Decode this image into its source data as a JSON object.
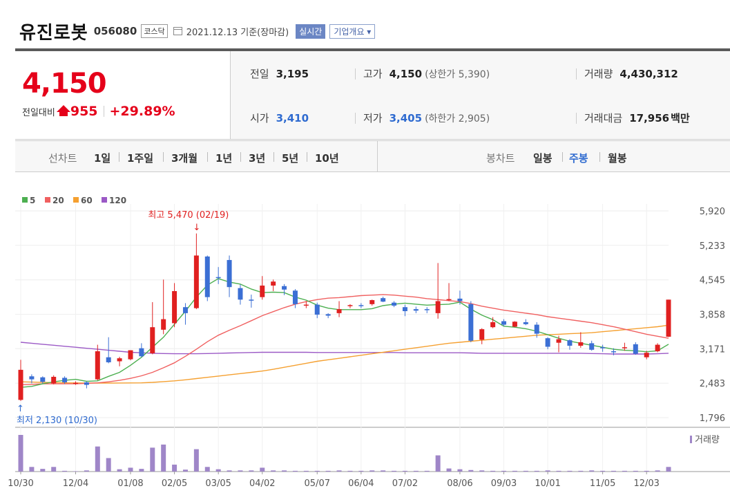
{
  "header": {
    "name": "유진로봇",
    "code": "056080",
    "market": "코스닥",
    "date": "2021.12.13 기준(장마감)",
    "realtime_button": "실시간",
    "corp_button": "기업개요 ▾"
  },
  "price": {
    "current": "4,150",
    "diff_label": "전일대비",
    "change": "955",
    "change_pct": "+29.89%"
  },
  "stats": {
    "prev_label": "전일",
    "prev": "3,195",
    "high_label": "고가",
    "high": "4,150",
    "high_note": "(상한가 5,390)",
    "volume_label": "거래량",
    "volume": "4,430,312",
    "open_label": "시가",
    "open": "3,410",
    "low_label": "저가",
    "low": "3,405",
    "low_note": "(하한가 2,905)",
    "amount_label": "거래대금",
    "amount": "17,956",
    "amount_unit": "백만"
  },
  "tabs": {
    "line_label": "선차트",
    "line": [
      "1일",
      "1주일",
      "3개월",
      "1년",
      "3년",
      "5년",
      "10년"
    ],
    "candle_label": "봉차트",
    "candle": [
      "일봉",
      "주봉",
      "월봉"
    ],
    "candle_selected": 1
  },
  "chart_data": {
    "type": "candlestick",
    "period": "weekly",
    "colors": {
      "up": "#e02020",
      "down": "#3b6fd4",
      "ma5": "#4caf50",
      "ma20": "#f06060",
      "ma60": "#f5a030",
      "ma120": "#9b59c6",
      "volume": "#9f86c8"
    },
    "legend": [
      {
        "name": "5",
        "color": "#4caf50"
      },
      {
        "name": "20",
        "color": "#f06060"
      },
      {
        "name": "60",
        "color": "#f5a030"
      },
      {
        "name": "120",
        "color": "#9b59c6"
      }
    ],
    "y_ticks": [
      "5,920",
      "5,233",
      "4,545",
      "3,858",
      "3,171",
      "2,483",
      "1,796"
    ],
    "y_tick_values": [
      5920,
      5233,
      4545,
      3858,
      3171,
      2483,
      1796
    ],
    "ylim": [
      1796,
      5920
    ],
    "x_labels": [
      "10/30",
      "12/04",
      "01/08",
      "02/05",
      "03/05",
      "04/02",
      "05/07",
      "06/04",
      "07/02",
      "08/06",
      "09/03",
      "10/01",
      "11/05",
      "12/03"
    ],
    "x_label_index": [
      0,
      5,
      10,
      14,
      18,
      22,
      27,
      31,
      35,
      40,
      44,
      48,
      53,
      57
    ],
    "high_annotation": {
      "text": "최고 5,470 (02/19)",
      "index": 16,
      "value": 5470
    },
    "low_annotation": {
      "text": "최저 2,130 (10/30)",
      "index": 0,
      "value": 2130
    },
    "volume_label": "거래량",
    "candles": [
      {
        "o": 2150,
        "h": 2950,
        "l": 2130,
        "c": 2750
      },
      {
        "o": 2620,
        "h": 2660,
        "l": 2480,
        "c": 2560
      },
      {
        "o": 2600,
        "h": 2620,
        "l": 2480,
        "c": 2510
      },
      {
        "o": 2480,
        "h": 2640,
        "l": 2460,
        "c": 2610
      },
      {
        "o": 2590,
        "h": 2620,
        "l": 2470,
        "c": 2500
      },
      {
        "o": 2480,
        "h": 2520,
        "l": 2450,
        "c": 2490
      },
      {
        "o": 2500,
        "h": 2520,
        "l": 2380,
        "c": 2450
      },
      {
        "o": 2560,
        "h": 3250,
        "l": 2540,
        "c": 3120
      },
      {
        "o": 3000,
        "h": 3400,
        "l": 2880,
        "c": 2900
      },
      {
        "o": 2920,
        "h": 3010,
        "l": 2820,
        "c": 2980
      },
      {
        "o": 2960,
        "h": 3140,
        "l": 2940,
        "c": 3140
      },
      {
        "o": 3180,
        "h": 3280,
        "l": 3000,
        "c": 3020
      },
      {
        "o": 3080,
        "h": 4100,
        "l": 3060,
        "c": 3600
      },
      {
        "o": 3550,
        "h": 4550,
        "l": 3460,
        "c": 3760
      },
      {
        "o": 3680,
        "h": 4480,
        "l": 3600,
        "c": 4320
      },
      {
        "o": 4000,
        "h": 4080,
        "l": 3650,
        "c": 3880
      },
      {
        "o": 3980,
        "h": 5470,
        "l": 3960,
        "c": 5030
      },
      {
        "o": 5010,
        "h": 5030,
        "l": 4120,
        "c": 4200
      },
      {
        "o": 4600,
        "h": 4800,
        "l": 4460,
        "c": 4580
      },
      {
        "o": 4940,
        "h": 5030,
        "l": 4200,
        "c": 4400
      },
      {
        "o": 4380,
        "h": 4450,
        "l": 4050,
        "c": 4150
      },
      {
        "o": 4150,
        "h": 4250,
        "l": 3990,
        "c": 4130
      },
      {
        "o": 4200,
        "h": 4620,
        "l": 4150,
        "c": 4430
      },
      {
        "o": 4430,
        "h": 4550,
        "l": 4320,
        "c": 4510
      },
      {
        "o": 4420,
        "h": 4460,
        "l": 4240,
        "c": 4350
      },
      {
        "o": 4330,
        "h": 4360,
        "l": 3980,
        "c": 4060
      },
      {
        "o": 4040,
        "h": 4120,
        "l": 3980,
        "c": 4050
      },
      {
        "o": 4050,
        "h": 4090,
        "l": 3780,
        "c": 3850
      },
      {
        "o": 3860,
        "h": 3880,
        "l": 3780,
        "c": 3830
      },
      {
        "o": 3880,
        "h": 4120,
        "l": 3800,
        "c": 3960
      },
      {
        "o": 4020,
        "h": 4060,
        "l": 3980,
        "c": 4040
      },
      {
        "o": 4040,
        "h": 4080,
        "l": 3980,
        "c": 4030
      },
      {
        "o": 4060,
        "h": 4150,
        "l": 4030,
        "c": 4140
      },
      {
        "o": 4180,
        "h": 4210,
        "l": 4100,
        "c": 4110
      },
      {
        "o": 4090,
        "h": 4120,
        "l": 4000,
        "c": 4030
      },
      {
        "o": 4000,
        "h": 4050,
        "l": 3820,
        "c": 3920
      },
      {
        "o": 3960,
        "h": 4010,
        "l": 3880,
        "c": 3930
      },
      {
        "o": 3960,
        "h": 4000,
        "l": 3880,
        "c": 3950
      },
      {
        "o": 3880,
        "h": 4880,
        "l": 3770,
        "c": 4120
      },
      {
        "o": 4150,
        "h": 4480,
        "l": 4120,
        "c": 4160
      },
      {
        "o": 4170,
        "h": 4330,
        "l": 4050,
        "c": 4120
      },
      {
        "o": 4060,
        "h": 4120,
        "l": 3300,
        "c": 3330
      },
      {
        "o": 3350,
        "h": 3580,
        "l": 3260,
        "c": 3560
      },
      {
        "o": 3600,
        "h": 3800,
        "l": 3580,
        "c": 3700
      },
      {
        "o": 3720,
        "h": 3760,
        "l": 3620,
        "c": 3650
      },
      {
        "o": 3610,
        "h": 3720,
        "l": 3600,
        "c": 3710
      },
      {
        "o": 3700,
        "h": 3760,
        "l": 3640,
        "c": 3660
      },
      {
        "o": 3650,
        "h": 3700,
        "l": 3390,
        "c": 3470
      },
      {
        "o": 3380,
        "h": 3400,
        "l": 3160,
        "c": 3210
      },
      {
        "o": 3290,
        "h": 3430,
        "l": 3100,
        "c": 3360
      },
      {
        "o": 3340,
        "h": 3360,
        "l": 3150,
        "c": 3230
      },
      {
        "o": 3230,
        "h": 3500,
        "l": 3190,
        "c": 3300
      },
      {
        "o": 3280,
        "h": 3330,
        "l": 3130,
        "c": 3150
      },
      {
        "o": 3200,
        "h": 3250,
        "l": 3110,
        "c": 3190
      },
      {
        "o": 3120,
        "h": 3180,
        "l": 3040,
        "c": 3110
      },
      {
        "o": 3180,
        "h": 3290,
        "l": 3130,
        "c": 3200
      },
      {
        "o": 3260,
        "h": 3300,
        "l": 3050,
        "c": 3070
      },
      {
        "o": 3000,
        "h": 3130,
        "l": 2960,
        "c": 3090
      },
      {
        "o": 3120,
        "h": 3280,
        "l": 3100,
        "c": 3250
      },
      {
        "o": 3410,
        "h": 4150,
        "l": 3405,
        "c": 4150
      }
    ],
    "volumes": [
      95,
      12,
      7,
      12,
      2,
      1,
      3,
      65,
      35,
      6,
      10,
      7,
      62,
      70,
      18,
      5,
      58,
      12,
      6,
      3,
      3,
      3,
      10,
      3,
      3,
      2,
      2,
      2,
      2,
      3,
      2,
      2,
      3,
      3,
      2,
      2,
      2,
      2,
      42,
      8,
      6,
      4,
      3,
      2,
      2,
      2,
      2,
      2,
      3,
      2,
      2,
      2,
      3,
      2,
      2,
      2,
      2,
      2,
      3,
      12
    ],
    "ma5": [
      2400,
      2420,
      2470,
      2510,
      2540,
      2560,
      2520,
      2530,
      2620,
      2700,
      2840,
      3000,
      3200,
      3400,
      3660,
      3920,
      4200,
      4440,
      4570,
      4500,
      4460,
      4360,
      4290,
      4300,
      4290,
      4200,
      4140,
      4040,
      3980,
      3950,
      3950,
      3950,
      3970,
      4030,
      4060,
      4080,
      4060,
      4040,
      4050,
      4060,
      4100,
      3960,
      3840,
      3750,
      3620,
      3600,
      3570,
      3520,
      3450,
      3380,
      3320,
      3280,
      3240,
      3200,
      3160,
      3140,
      3130,
      3110,
      3130,
      3260
    ],
    "ma20": [
      2450,
      2460,
      2470,
      2470,
      2470,
      2470,
      2480,
      2490,
      2510,
      2540,
      2580,
      2630,
      2700,
      2790,
      2890,
      3020,
      3160,
      3310,
      3440,
      3540,
      3630,
      3730,
      3830,
      3910,
      3990,
      4060,
      4110,
      4150,
      4180,
      4190,
      4210,
      4230,
      4240,
      4250,
      4240,
      4220,
      4200,
      4170,
      4150,
      4130,
      4110,
      4070,
      4020,
      3980,
      3940,
      3910,
      3880,
      3850,
      3810,
      3780,
      3750,
      3720,
      3690,
      3650,
      3610,
      3560,
      3510,
      3460,
      3420,
      3380
    ],
    "ma60": [
      2510,
      2505,
      2500,
      2495,
      2490,
      2488,
      2487,
      2486,
      2486,
      2487,
      2488,
      2490,
      2500,
      2515,
      2530,
      2550,
      2575,
      2600,
      2625,
      2650,
      2675,
      2700,
      2725,
      2760,
      2800,
      2840,
      2880,
      2920,
      2950,
      2980,
      3010,
      3040,
      3070,
      3100,
      3130,
      3160,
      3190,
      3220,
      3250,
      3280,
      3300,
      3320,
      3340,
      3360,
      3380,
      3400,
      3420,
      3440,
      3450,
      3460,
      3470,
      3480,
      3490,
      3510,
      3530,
      3550,
      3570,
      3590,
      3610,
      3640
    ],
    "ma120": [
      3300,
      3280,
      3260,
      3240,
      3220,
      3200,
      3180,
      3160,
      3140,
      3120,
      3100,
      3090,
      3080,
      3075,
      3070,
      3070,
      3070,
      3075,
      3080,
      3085,
      3090,
      3095,
      3100,
      3100,
      3100,
      3100,
      3100,
      3095,
      3095,
      3095,
      3095,
      3095,
      3095,
      3095,
      3095,
      3090,
      3090,
      3090,
      3090,
      3090,
      3090,
      3085,
      3080,
      3080,
      3080,
      3080,
      3080,
      3080,
      3080,
      3080,
      3080,
      3080,
      3075,
      3070,
      3065,
      3065,
      3065,
      3065,
      3070,
      3080
    ]
  }
}
